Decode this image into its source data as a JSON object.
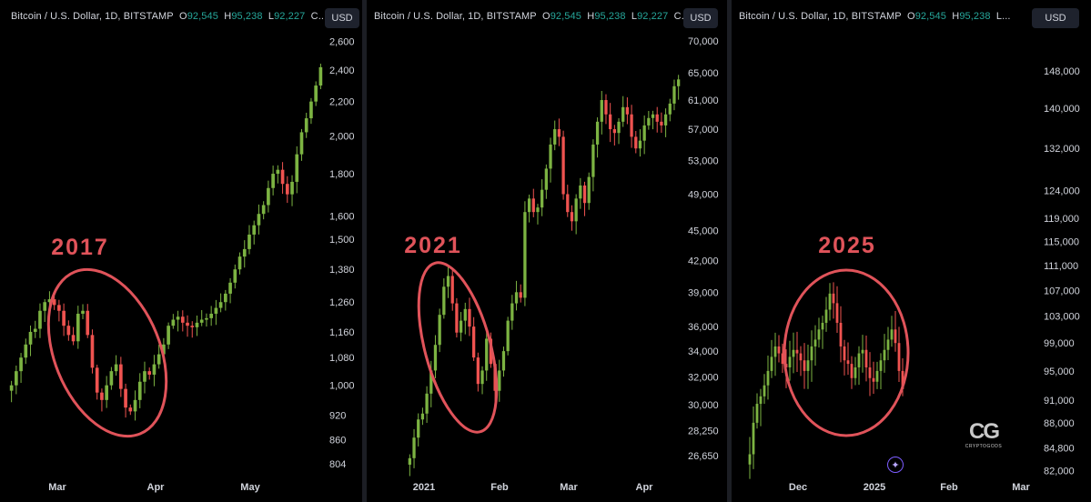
{
  "colors": {
    "up": "#26a69a",
    "up_bar": "#7cb342",
    "down": "#ef5350",
    "circle": "#e0535a",
    "text": "#d1d4dc"
  },
  "panels": [
    {
      "header": {
        "pair": "Bitcoin / U.S. Dollar, 1D, BITSTAMP",
        "o_label": "O",
        "o": "92,545",
        "h_label": "H",
        "h": "95,238",
        "l_label": "L",
        "l": "92,227",
        "c_label": "C..."
      },
      "currency": "USD",
      "year_label": "2017"
    },
    {
      "header": {
        "pair": "Bitcoin / U.S. Dollar, 1D, BITSTAMP",
        "o_label": "O",
        "o": "92,545",
        "h_label": "H",
        "h": "95,238",
        "l_label": "L",
        "l": "92,227",
        "c_label": "C..."
      },
      "currency": "USD",
      "year_label": "2021"
    },
    {
      "header": {
        "pair": "Bitcoin / U.S. Dollar, 1D, BITSTAMP",
        "o_label": "O",
        "o": "92,545",
        "h_label": "H",
        "h": "95,238",
        "l_label": "L..."
      },
      "currency": "USD",
      "year_label": "2025"
    }
  ],
  "logo": {
    "mark": "CG",
    "word": "CRYPTOGODS",
    "icon": "cryptogods-logo-icon"
  },
  "star_icon": "sparkle-icon",
  "chart_data": [
    {
      "type": "candlestick",
      "title": "Bitcoin / U.S. Dollar, 1D, BITSTAMP",
      "yscale": "log",
      "y_ticks": [
        2600,
        2400,
        2200,
        2000,
        1800,
        1600,
        1500,
        1380,
        1260,
        1160,
        1080,
        1000,
        920,
        860,
        804
      ],
      "y_tick_labels": [
        "2,600",
        "2,400",
        "2,200",
        "2,000",
        "1,800",
        "1,600",
        "1,500",
        "1,380",
        "1,260",
        "1,160",
        "1,080",
        "1,000",
        "920",
        "860",
        "804"
      ],
      "ylim": [
        780,
        2650
      ],
      "x_ticks": [
        "Mar",
        "Apr",
        "May"
      ],
      "annotation": "2017",
      "close_path": [
        1000,
        1040,
        1080,
        1120,
        1160,
        1170,
        1230,
        1260,
        1270,
        1250,
        1230,
        1180,
        1150,
        1130,
        1220,
        1230,
        1150,
        1050,
        980,
        960,
        1000,
        1040,
        1060,
        990,
        940,
        930,
        960,
        1010,
        1040,
        1030,
        1060,
        1090,
        1120,
        1180,
        1200,
        1210,
        1190,
        1180,
        1175,
        1190,
        1200,
        1205,
        1220,
        1240,
        1260,
        1290,
        1330,
        1380,
        1430,
        1460,
        1520,
        1560,
        1610,
        1650,
        1730,
        1800,
        1820,
        1750,
        1700,
        1760,
        1900,
        2020,
        2100,
        2200,
        2300,
        2420
      ]
    },
    {
      "type": "candlestick",
      "title": "Bitcoin / U.S. Dollar, 1D, BITSTAMP",
      "yscale": "log",
      "y_ticks": [
        70000,
        65000,
        61000,
        57000,
        53000,
        49000,
        45000,
        42000,
        39000,
        36000,
        34000,
        32000,
        30000,
        28250,
        26650
      ],
      "y_tick_labels": [
        "70,000",
        "65,000",
        "61,000",
        "57,000",
        "53,000",
        "49,000",
        "45,000",
        "42,000",
        "39,000",
        "36,000",
        "34,000",
        "32,000",
        "30,000",
        "28,250",
        "26,650"
      ],
      "ylim": [
        25500,
        71500
      ],
      "x_ticks": [
        "2021",
        "Feb",
        "Mar",
        "Apr"
      ],
      "annotation": "2021",
      "close_path": [
        26500,
        27800,
        29000,
        29400,
        30800,
        32500,
        34500,
        37000,
        39500,
        40500,
        38000,
        35500,
        36500,
        37500,
        36000,
        33500,
        31500,
        32500,
        35000,
        33000,
        31000,
        32500,
        34000,
        36500,
        38000,
        39000,
        38500,
        47000,
        48500,
        47000,
        47500,
        49500,
        52000,
        55000,
        57000,
        56000,
        49000,
        47000,
        46000,
        48500,
        50000,
        48000,
        51000,
        55000,
        58000,
        61000,
        59000,
        57000,
        56500,
        58000,
        60000,
        59000,
        56000,
        54500,
        55500,
        57500,
        58500,
        59000,
        58000,
        57500,
        59000,
        60500,
        63000,
        64000
      ]
    },
    {
      "type": "candlestick",
      "title": "Bitcoin / U.S. Dollar, 1D, BITSTAMP",
      "yscale": "log",
      "y_ticks": [
        148000,
        140000,
        132000,
        124000,
        119000,
        115000,
        111000,
        107000,
        103000,
        99000,
        95000,
        91000,
        88000,
        84800,
        82000
      ],
      "y_tick_labels": [
        "148,000",
        "140,000",
        "132,000",
        "124,000",
        "119,000",
        "115,000",
        "111,000",
        "107,000",
        "103,000",
        "99,000",
        "95,000",
        "91,000",
        "88,000",
        "84,800",
        "82,000"
      ],
      "ylim": [
        81500,
        152000
      ],
      "x_ticks": [
        "Dec",
        "2025",
        "Feb",
        "Mar"
      ],
      "annotation": "2025",
      "close_path": [
        84000,
        88000,
        90500,
        91500,
        93000,
        95000,
        97000,
        98500,
        97500,
        96000,
        95500,
        97000,
        98000,
        97500,
        96500,
        95000,
        96500,
        98500,
        99500,
        101000,
        102000,
        104000,
        106500,
        105000,
        102000,
        98500,
        96500,
        96000,
        94000,
        95500,
        97500,
        98000,
        95500,
        94000,
        93500,
        95000,
        96500,
        98000,
        99500,
        101000,
        99000,
        95000,
        92500
      ]
    }
  ]
}
